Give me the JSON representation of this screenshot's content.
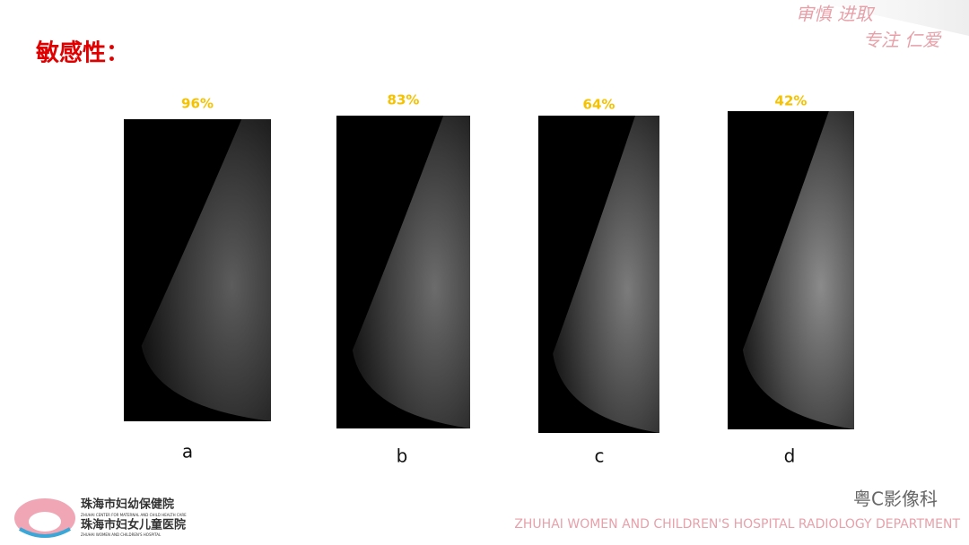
{
  "header": {
    "title": "敏感性：",
    "motto": [
      "审慎 进取",
      "专注 仁爱"
    ]
  },
  "panels": [
    {
      "percent": "96%",
      "label": "a"
    },
    {
      "percent": "83%",
      "label": "b"
    },
    {
      "percent": "64%",
      "label": "c"
    },
    {
      "percent": "42%",
      "label": "d"
    }
  ],
  "footer": {
    "logo_lines": [
      "珠海市妇幼保健院",
      "ZHUHAI CENTER FOR MATERNAL AND CHILD HEALTH CARE",
      "珠海市妇女儿童医院",
      "ZHUHAI WOMEN AND CHILDREN'S HOSPITAL"
    ],
    "department": "ZHUHAI WOMEN AND CHILDREN'S HOSPITAL RADIOLOGY DEPARTMENT",
    "watermark": "粤C影像科"
  }
}
